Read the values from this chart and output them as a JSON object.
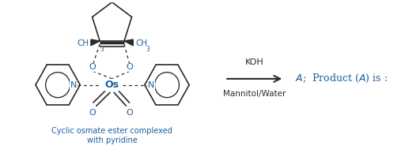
{
  "background_color": "#ffffff",
  "bond_color": "#2a2a2a",
  "label_color": "#1a5fa0",
  "text_color": "#1a5fa0",
  "caption_color": "#1a5fa0",
  "arrow_above_text": "KOH",
  "arrow_below_text": "Mannitol/Water",
  "label_line1": "Cyclic osmate ester complexed",
  "label_line2": "with pyridine"
}
